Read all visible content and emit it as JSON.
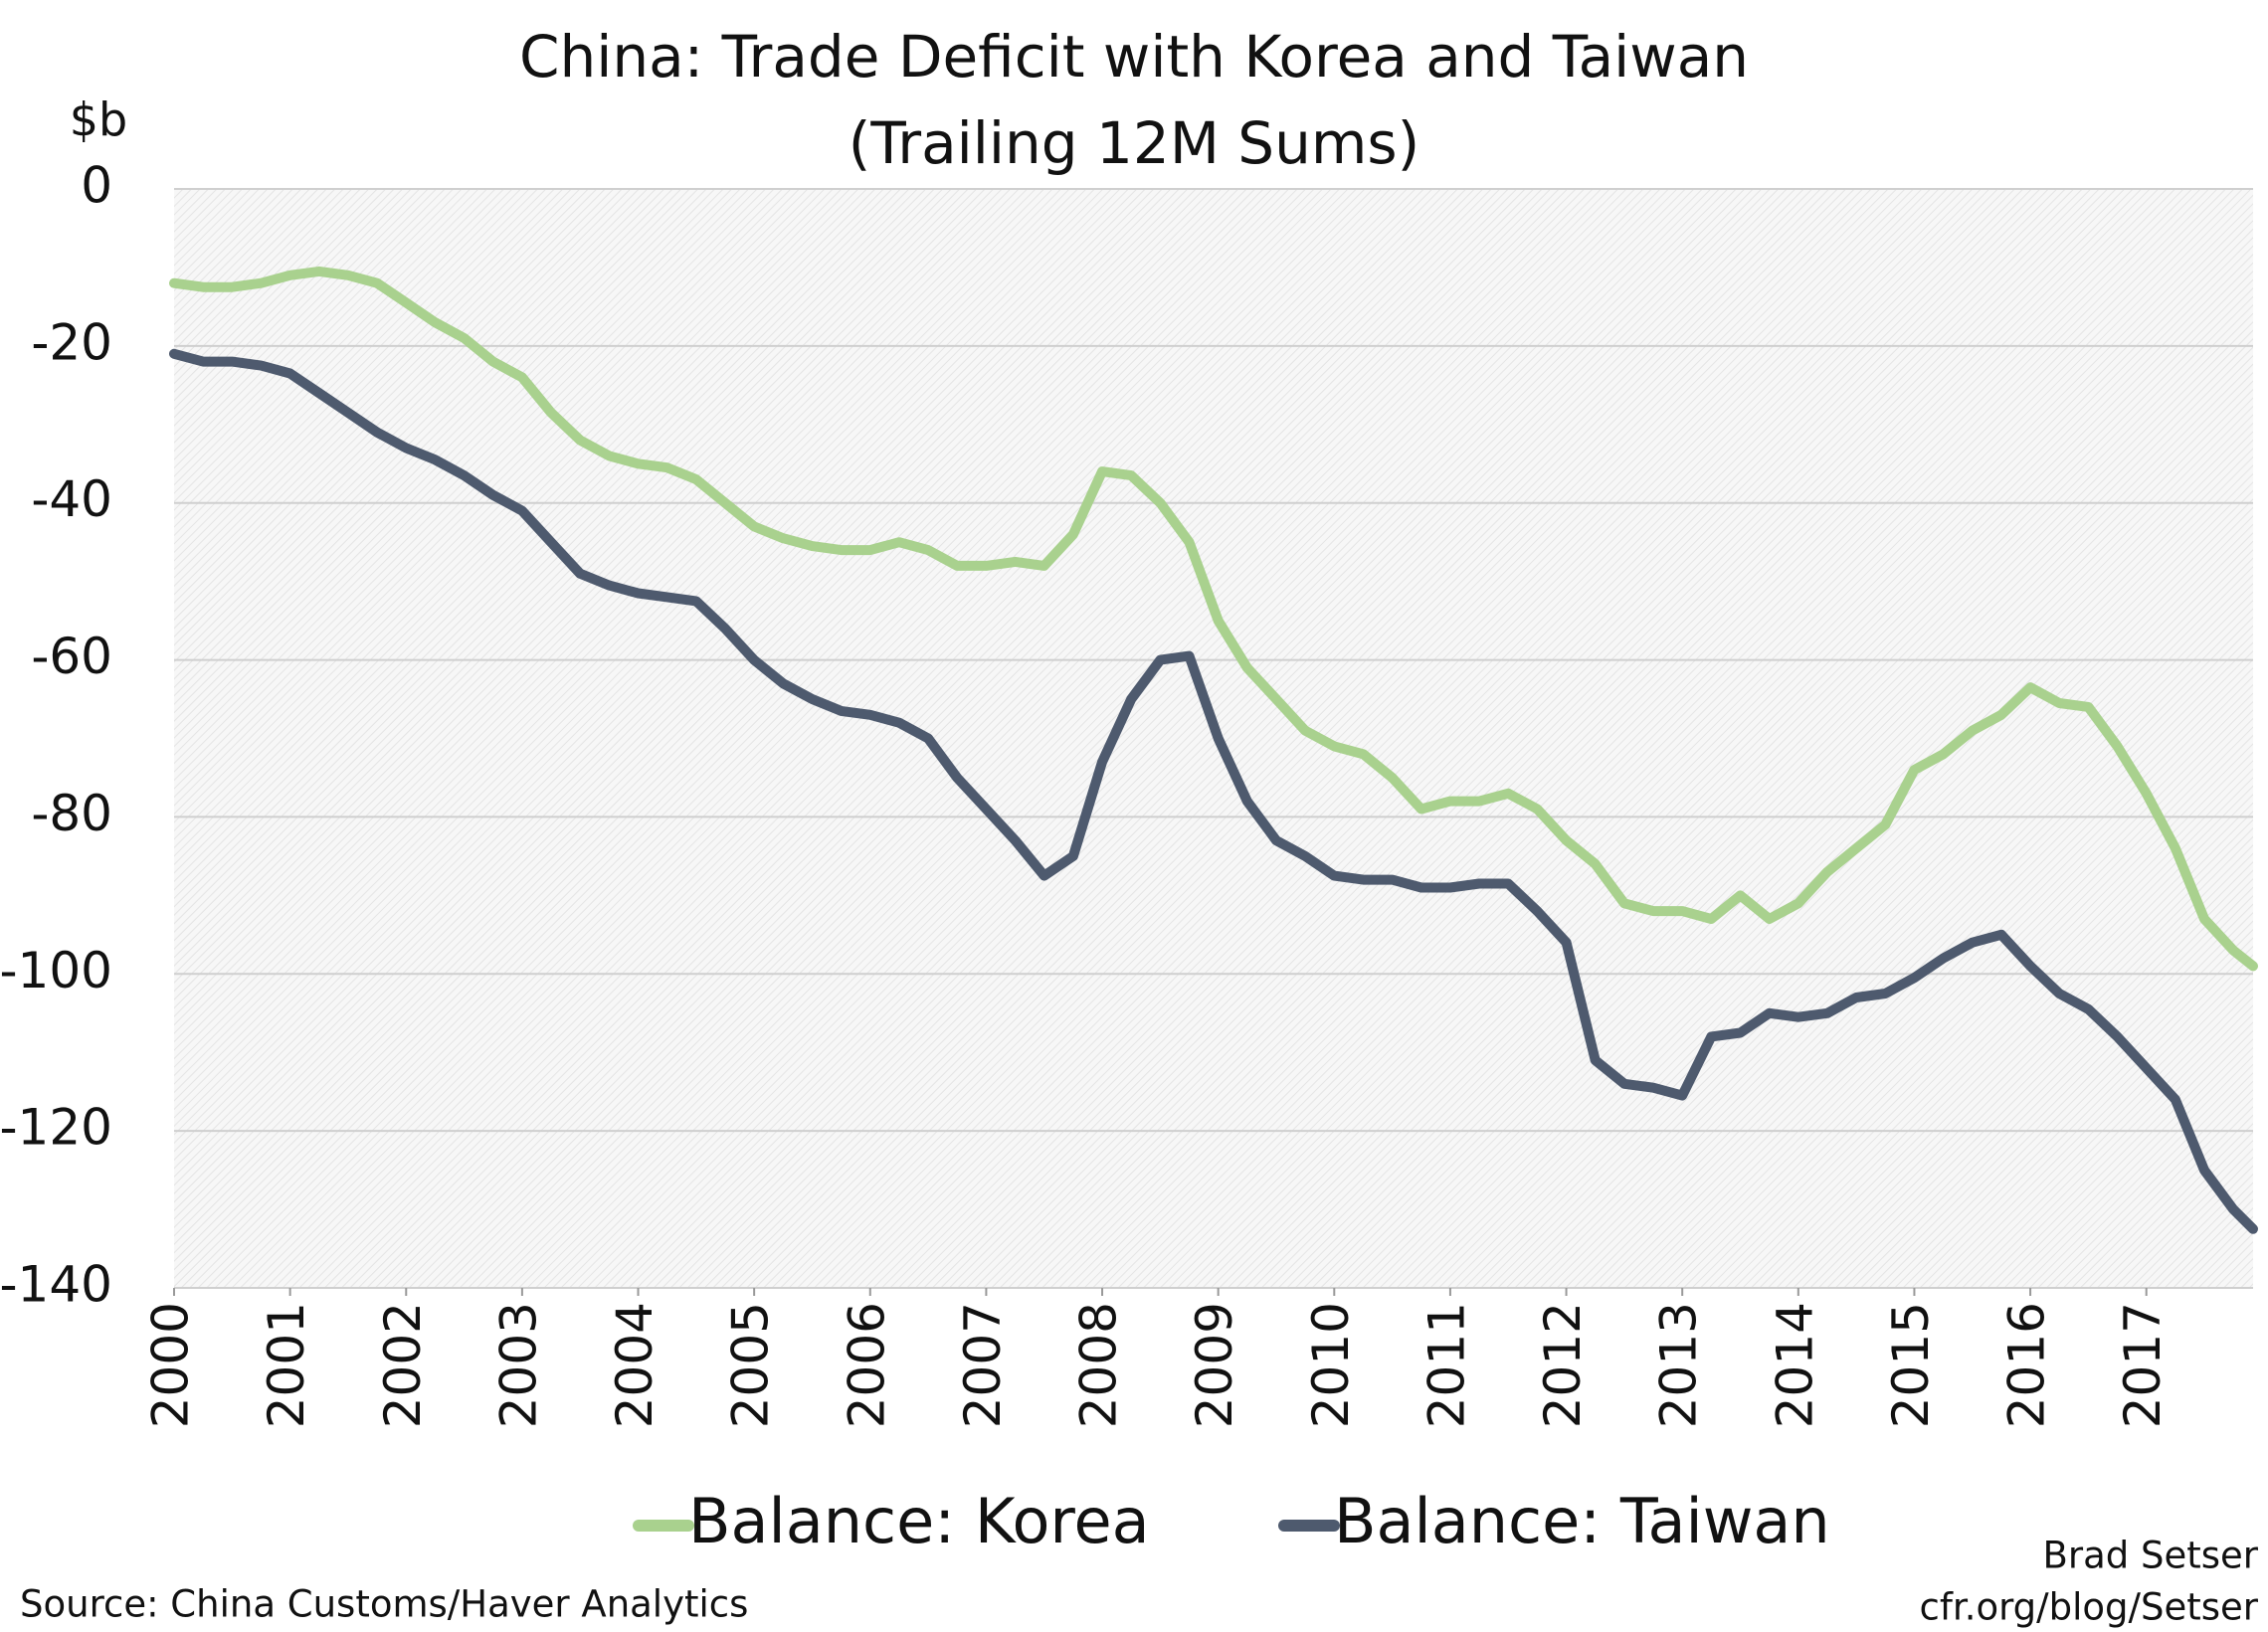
{
  "chart_data": {
    "type": "line",
    "title": "China: Trade Deficit with Korea and Taiwan",
    "subtitle": "(Trailing 12M Sums)",
    "y_label": "$b",
    "source": "Source: China Customs/Haver Analytics",
    "credit": [
      "Brad Setser",
      "cfr.org/blog/Setser"
    ],
    "x": [
      2000,
      2000.25,
      2000.5,
      2000.75,
      2001,
      2001.25,
      2001.5,
      2001.75,
      2002,
      2002.25,
      2002.5,
      2002.75,
      2003,
      2003.25,
      2003.5,
      2003.75,
      2004,
      2004.25,
      2004.5,
      2004.75,
      2005,
      2005.25,
      2005.5,
      2005.75,
      2006,
      2006.25,
      2006.5,
      2006.75,
      2007,
      2007.25,
      2007.5,
      2007.75,
      2008,
      2008.25,
      2008.5,
      2008.75,
      2009,
      2009.25,
      2009.5,
      2009.75,
      2010,
      2010.25,
      2010.5,
      2010.75,
      2011,
      2011.25,
      2011.5,
      2011.75,
      2012,
      2012.25,
      2012.5,
      2012.75,
      2013,
      2013.25,
      2013.5,
      2013.75,
      2014,
      2014.25,
      2014.5,
      2014.75,
      2015,
      2015.25,
      2015.5,
      2015.75,
      2016,
      2016.25,
      2016.5,
      2016.75,
      2017,
      2017.25,
      2017.5,
      2017.75,
      2017.92
    ],
    "series": [
      {
        "name": "Balance: Korea",
        "color": "#a9d18e",
        "values": [
          -12,
          -12.5,
          -12.5,
          -12,
          -11,
          -10.5,
          -11,
          -12,
          -14.5,
          -17,
          -19,
          -22,
          -24,
          -28.5,
          -32,
          -34,
          -35,
          -35.5,
          -37,
          -40,
          -43,
          -44.5,
          -45.5,
          -46,
          -46,
          -45,
          -46,
          -48,
          -48,
          -47.5,
          -48,
          -44,
          -36,
          -36.5,
          -40,
          -45,
          -55,
          -61,
          -65,
          -69,
          -71,
          -72,
          -75,
          -79,
          -78,
          -78,
          -77,
          -79,
          -83,
          -86,
          -91,
          -92,
          -92,
          -93,
          -90,
          -93,
          -91,
          -87,
          -84,
          -81,
          -74,
          -72,
          -69,
          -67,
          -63.5,
          -65.5,
          -66,
          -71,
          -77,
          -84,
          -93,
          -97,
          -99
        ]
      },
      {
        "name": "Balance: Taiwan",
        "color": "#4e5a6e",
        "values": [
          -21,
          -22,
          -22,
          -22.5,
          -23.5,
          -26,
          -28.5,
          -31,
          -33,
          -34.5,
          -36.5,
          -39,
          -41,
          -45,
          -49,
          -50.5,
          -51.5,
          -52,
          -52.5,
          -56,
          -60,
          -63,
          -65,
          -66.5,
          -67,
          -68,
          -70,
          -75,
          -79,
          -83,
          -87.5,
          -85,
          -73,
          -65,
          -60,
          -59.5,
          -70,
          -78,
          -83,
          -85,
          -87.5,
          -88,
          -88,
          -89,
          -89,
          -88.5,
          -88.5,
          -92,
          -96,
          -111,
          -114,
          -114.5,
          -115.5,
          -108,
          -107.5,
          -105,
          -105.5,
          -105,
          -103,
          -102.5,
          -100.5,
          -98,
          -96,
          -95,
          -99,
          -102.5,
          -104.5,
          -108,
          -112,
          -116,
          -125,
          -130,
          -132.5
        ]
      }
    ],
    "xlim": [
      2000,
      2017.92
    ],
    "xticks": [
      2000,
      2001,
      2002,
      2003,
      2004,
      2005,
      2006,
      2007,
      2008,
      2009,
      2010,
      2011,
      2012,
      2013,
      2014,
      2015,
      2016,
      2017
    ],
    "ylim": [
      -140,
      0
    ],
    "yticks": [
      0,
      -20,
      -40,
      -60,
      -80,
      -100,
      -120,
      -140
    ],
    "grid": true
  }
}
